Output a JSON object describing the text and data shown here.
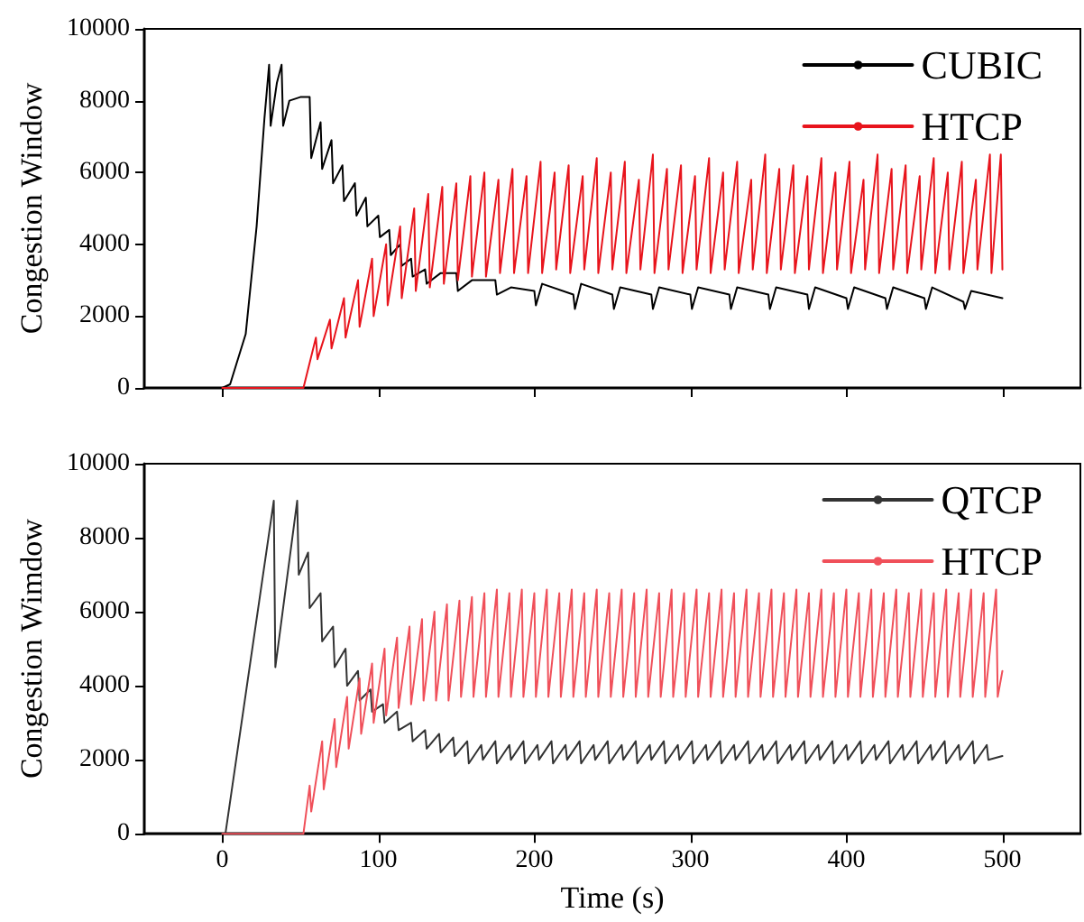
{
  "chart_data": [
    {
      "type": "line",
      "ylabel": "Congestion Window",
      "xlim": [
        -50,
        550
      ],
      "xticks": [
        0,
        100,
        200,
        300,
        400,
        500
      ],
      "ylim": [
        0,
        10000
      ],
      "yticks": [
        0,
        2000,
        4000,
        6000,
        8000,
        10000
      ],
      "tick_labels": "y",
      "legend": "top right",
      "series": [
        {
          "name": "CUBIC",
          "color": "#000000",
          "x": [
            0,
            5,
            15,
            22,
            27,
            30,
            31,
            35,
            38,
            39,
            43,
            50,
            56,
            57,
            63,
            64,
            70,
            71,
            77,
            78,
            85,
            86,
            92,
            93,
            100,
            101,
            107,
            108,
            114,
            115,
            121,
            122,
            130,
            131,
            140,
            150,
            151,
            160,
            175,
            176,
            185,
            200,
            201,
            205,
            225,
            226,
            230,
            250,
            251,
            255,
            275,
            276,
            280,
            300,
            301,
            305,
            325,
            326,
            330,
            350,
            351,
            355,
            375,
            376,
            380,
            400,
            401,
            405,
            425,
            426,
            430,
            450,
            451,
            455,
            475,
            476,
            480,
            500
          ],
          "values": [
            0,
            100,
            1500,
            4500,
            7500,
            9000,
            7300,
            8500,
            9000,
            7300,
            8000,
            8100,
            8100,
            6400,
            7400,
            6100,
            6900,
            5700,
            6200,
            5200,
            5700,
            4800,
            5300,
            4500,
            4800,
            4200,
            4400,
            3700,
            4000,
            3400,
            3600,
            3100,
            3300,
            2900,
            3200,
            3200,
            2700,
            3000,
            3000,
            2600,
            2800,
            2700,
            2300,
            2900,
            2600,
            2200,
            2900,
            2600,
            2200,
            2800,
            2600,
            2200,
            2800,
            2600,
            2200,
            2800,
            2600,
            2200,
            2800,
            2600,
            2200,
            2800,
            2600,
            2200,
            2800,
            2500,
            2200,
            2800,
            2500,
            2200,
            2800,
            2500,
            2200,
            2800,
            2400,
            2200,
            2700,
            2500
          ]
        },
        {
          "name": "HTCP",
          "color": "#e8141c",
          "x": [
            0,
            50,
            52,
            60,
            61,
            69,
            70,
            78,
            79,
            87,
            88,
            96,
            97,
            105,
            106,
            114,
            115,
            123,
            124,
            132,
            133,
            141,
            142,
            150,
            151,
            159,
            160,
            168,
            169,
            177,
            178,
            186,
            187,
            195,
            196,
            204,
            205,
            213,
            214,
            222,
            223,
            231,
            232,
            240,
            241,
            249,
            250,
            258,
            259,
            267,
            268,
            276,
            277,
            285,
            286,
            294,
            295,
            303,
            304,
            312,
            313,
            321,
            322,
            330,
            331,
            339,
            340,
            348,
            349,
            357,
            358,
            366,
            367,
            375,
            376,
            384,
            385,
            393,
            394,
            402,
            403,
            411,
            412,
            420,
            421,
            429,
            430,
            438,
            439,
            447,
            448,
            456,
            457,
            465,
            466,
            474,
            475,
            483,
            484,
            492,
            493,
            499,
            500
          ],
          "values": [
            0,
            0,
            0,
            1400,
            800,
            1900,
            1100,
            2500,
            1400,
            3000,
            1700,
            3600,
            2000,
            4000,
            2300,
            4500,
            2500,
            5000,
            2700,
            5400,
            2800,
            5600,
            2900,
            5700,
            3000,
            5900,
            3100,
            6000,
            3100,
            5800,
            3200,
            6100,
            3200,
            5900,
            3200,
            6300,
            3200,
            6000,
            3300,
            6200,
            3200,
            5900,
            3300,
            6400,
            3200,
            6000,
            3300,
            6300,
            3200,
            5800,
            3300,
            6500,
            3200,
            6100,
            3300,
            6200,
            3200,
            5900,
            3300,
            6400,
            3200,
            6000,
            3300,
            6300,
            3200,
            5800,
            3300,
            6500,
            3200,
            6100,
            3300,
            6200,
            3200,
            5900,
            3300,
            6400,
            3200,
            6000,
            3300,
            6300,
            3200,
            5800,
            3300,
            6500,
            3200,
            6100,
            3300,
            6200,
            3200,
            5900,
            3300,
            6400,
            3200,
            6000,
            3300,
            6300,
            3200,
            5800,
            3300,
            6500,
            3200,
            6500,
            3300
          ]
        }
      ]
    },
    {
      "type": "line",
      "xlabel": "Time (s)",
      "ylabel": "Congestion Wimdow",
      "xlim": [
        -50,
        550
      ],
      "xticks": [
        0,
        100,
        200,
        300,
        400,
        500
      ],
      "ylim": [
        0,
        10000
      ],
      "yticks": [
        0,
        2000,
        4000,
        6000,
        8000,
        10000
      ],
      "legend": "top right",
      "series": [
        {
          "name": "QTCP",
          "color": "#333333",
          "x": [
            0,
            2,
            33,
            34,
            48,
            49,
            55,
            56,
            63,
            64,
            71,
            72,
            79,
            80,
            87,
            88,
            95,
            96,
            103,
            104,
            112,
            113,
            121,
            122,
            130,
            131,
            139,
            140,
            148,
            149,
            157,
            158,
            166,
            167,
            175,
            176,
            184,
            185,
            193,
            194,
            202,
            203,
            211,
            212,
            220,
            221,
            229,
            230,
            238,
            239,
            247,
            248,
            256,
            257,
            265,
            266,
            274,
            275,
            283,
            284,
            292,
            293,
            301,
            302,
            310,
            311,
            319,
            320,
            328,
            329,
            337,
            338,
            346,
            347,
            355,
            356,
            364,
            365,
            373,
            374,
            382,
            383,
            391,
            392,
            400,
            401,
            409,
            410,
            418,
            419,
            427,
            428,
            436,
            437,
            445,
            446,
            454,
            455,
            463,
            464,
            472,
            473,
            481,
            482,
            490,
            491,
            500
          ],
          "values": [
            0,
            0,
            9000,
            4500,
            9000,
            7000,
            7600,
            6100,
            6500,
            5200,
            5600,
            4500,
            5000,
            4000,
            4400,
            3600,
            3900,
            3300,
            3500,
            3000,
            3300,
            2800,
            3000,
            2500,
            2800,
            2300,
            2700,
            2200,
            2600,
            2100,
            2500,
            1900,
            2400,
            2000,
            2500,
            1900,
            2400,
            2000,
            2500,
            1900,
            2400,
            2000,
            2500,
            1900,
            2400,
            2000,
            2500,
            1900,
            2400,
            2000,
            2500,
            1900,
            2400,
            2000,
            2500,
            1900,
            2400,
            2000,
            2500,
            1900,
            2400,
            2000,
            2500,
            1900,
            2400,
            2000,
            2500,
            1900,
            2400,
            2000,
            2500,
            1900,
            2400,
            2000,
            2500,
            1900,
            2400,
            2000,
            2500,
            1900,
            2400,
            2000,
            2500,
            1900,
            2400,
            2000,
            2500,
            1900,
            2400,
            2000,
            2500,
            1900,
            2400,
            2000,
            2500,
            1900,
            2400,
            2000,
            2500,
            1900,
            2400,
            2000,
            2500,
            1900,
            2400,
            2000,
            2100
          ]
        },
        {
          "name": "HTCP",
          "color": "#f0505a",
          "x": [
            0,
            50,
            52,
            56,
            57,
            64,
            65,
            72,
            73,
            80,
            81,
            88,
            89,
            96,
            97,
            104,
            105,
            112,
            113,
            120,
            121,
            128,
            129,
            136,
            137,
            144,
            145,
            152,
            153,
            160,
            161,
            168,
            169,
            176,
            177,
            184,
            185,
            192,
            193,
            200,
            201,
            208,
            209,
            216,
            217,
            224,
            225,
            232,
            233,
            240,
            241,
            248,
            249,
            256,
            257,
            264,
            265,
            272,
            273,
            280,
            281,
            288,
            289,
            296,
            297,
            304,
            305,
            312,
            313,
            320,
            321,
            328,
            329,
            336,
            337,
            344,
            345,
            352,
            353,
            360,
            361,
            368,
            369,
            376,
            377,
            384,
            385,
            392,
            393,
            400,
            401,
            408,
            409,
            416,
            417,
            424,
            425,
            432,
            433,
            440,
            441,
            448,
            449,
            456,
            457,
            464,
            465,
            472,
            473,
            480,
            481,
            488,
            489,
            496,
            497,
            500
          ],
          "values": [
            0,
            0,
            0,
            1300,
            600,
            2500,
            1200,
            3100,
            1800,
            3700,
            2300,
            4200,
            2700,
            4600,
            3000,
            5000,
            3200,
            5300,
            3400,
            5600,
            3500,
            5800,
            3600,
            6000,
            3600,
            6200,
            3600,
            6300,
            3700,
            6400,
            3700,
            6500,
            3700,
            6600,
            3700,
            6500,
            3700,
            6600,
            3700,
            6500,
            3700,
            6600,
            3700,
            6500,
            3700,
            6600,
            3700,
            6500,
            3700,
            6600,
            3700,
            6500,
            3700,
            6600,
            3700,
            6500,
            3700,
            6600,
            3700,
            6500,
            3700,
            6600,
            3700,
            6500,
            3700,
            6600,
            3700,
            6500,
            3700,
            6600,
            3700,
            6500,
            3700,
            6600,
            3700,
            6500,
            3700,
            6600,
            3700,
            6500,
            3700,
            6600,
            3700,
            6500,
            3700,
            6600,
            3700,
            6500,
            3700,
            6600,
            3700,
            6500,
            3700,
            6600,
            3700,
            6500,
            3700,
            6600,
            3700,
            6500,
            3700,
            6600,
            3700,
            6500,
            3700,
            6600,
            3700,
            6500,
            3700,
            6600,
            3700,
            6500,
            3700,
            6600,
            3700,
            4400
          ]
        }
      ]
    }
  ]
}
